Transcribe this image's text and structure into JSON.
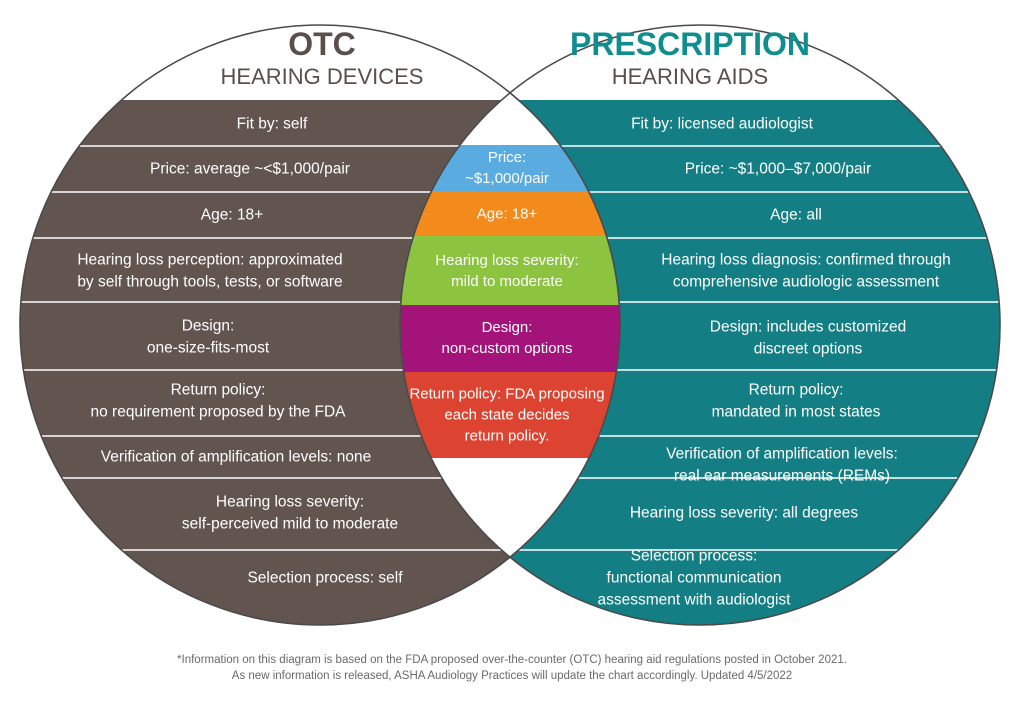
{
  "colors": {
    "otc_band": "#62554f",
    "rx_band": "#137f85",
    "rx_title": "#0f8d8f",
    "otc_title": "#5a4f4a",
    "outline": "#4a4a4a",
    "price": "#5aace0",
    "age": "#f28a1c",
    "severity": "#8cc440",
    "design": "#a4137a",
    "return": "#dc4330"
  },
  "otc": {
    "title": "OTC",
    "subtitle": "HEARING DEVICES",
    "rows": [
      [
        "Fit by: self"
      ],
      [
        "Price: average ~<$1,000/pair"
      ],
      [
        "Age: 18+"
      ],
      [
        "Hearing loss perception: approximated",
        "by self through tools, tests, or software"
      ],
      [
        "Design:",
        "one-size-fits-most"
      ],
      [
        "Return policy:",
        "no requirement proposed by the FDA"
      ],
      [
        "Verification of amplification levels: none"
      ],
      [
        "Hearing loss severity:",
        "self-perceived mild to moderate"
      ],
      [
        "Selection process: self"
      ]
    ]
  },
  "prescription": {
    "title": "PRESCRIPTION",
    "subtitle": "HEARING AIDS",
    "rows": [
      [
        "Fit by: licensed audiologist"
      ],
      [
        "Price: ~$1,000–$7,000/pair"
      ],
      [
        "Age: all"
      ],
      [
        "Hearing loss diagnosis: confirmed through",
        "comprehensive audiologic assessment"
      ],
      [
        "Design: includes customized",
        "discreet options"
      ],
      [
        "Return policy:",
        "mandated in most states"
      ],
      [
        "Verification of amplification levels:",
        "real ear measurements (REMs)"
      ],
      [
        "Hearing loss severity: all degrees"
      ],
      [
        "Selection process:",
        "functional communication",
        "assessment with audiologist"
      ]
    ]
  },
  "overlap": {
    "rows": [
      [
        "Price:",
        "~$1,000/pair"
      ],
      [
        "Age: 18+"
      ],
      [
        "Hearing loss severity:",
        "mild to moderate"
      ],
      [
        "Design:",
        "non-custom options"
      ],
      [
        "Return policy: FDA proposing",
        "each state decides",
        "return policy."
      ]
    ]
  },
  "footnote": {
    "line1": "*Information on this diagram is based on the FDA proposed over-the-counter (OTC) hearing aid regulations posted in October 2021.",
    "line2": "As new information is released, ASHA Audiology Practices will update the chart accordingly. Updated 4/5/2022"
  }
}
